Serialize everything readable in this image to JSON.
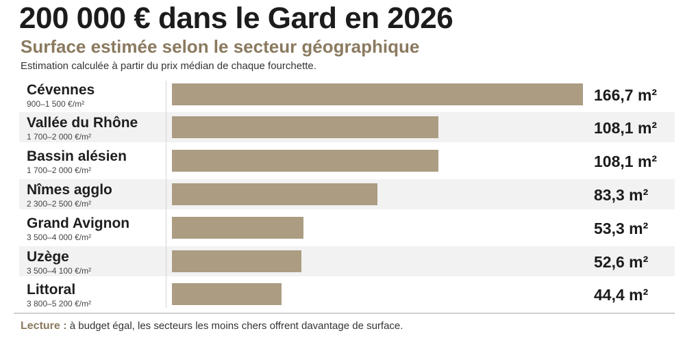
{
  "header": {
    "title": "200 000 € dans le Gard en 2026",
    "subtitle": "Surface estimée selon le secteur géographique",
    "note": "Estimation calculée à partir du prix médian de chaque fourchette."
  },
  "footer": {
    "lead": "Lecture :",
    "text": "à budget égal, les secteurs les moins chers offrent davantage de surface."
  },
  "colors": {
    "bar": "#ab9c82",
    "accent": "#8a7a5f",
    "row_shade": "#f2f2f2"
  },
  "chart_data": {
    "type": "bar",
    "orientation": "horizontal",
    "title": "200 000 € dans le Gard en 2026",
    "subtitle": "Surface estimée selon le secteur géographique",
    "categories": [
      "Cévennes",
      "Vallée du Rhône",
      "Bassin alésien",
      "Nîmes agglo",
      "Grand Avignon",
      "Uzège",
      "Littoral"
    ],
    "ranges": [
      "900–1 500 €/m²",
      "1 700–2 000 €/m²",
      "1 700–2 000 €/m²",
      "2 300–2 500 €/m²",
      "3 500–4 000 €/m²",
      "3 500–4 100 €/m²",
      "3 800–5 200 €/m²"
    ],
    "values": [
      166.7,
      108.1,
      108.1,
      83.3,
      53.3,
      52.6,
      44.4
    ],
    "value_labels": [
      "166,7 m²",
      "108,1 m²",
      "108,1 m²",
      "83,3 m²",
      "53,3 m²",
      "52,6 m²",
      "44,4 m²"
    ],
    "unit": "m²",
    "xlim": [
      0,
      166.7
    ],
    "grid": false,
    "legend": "none"
  }
}
